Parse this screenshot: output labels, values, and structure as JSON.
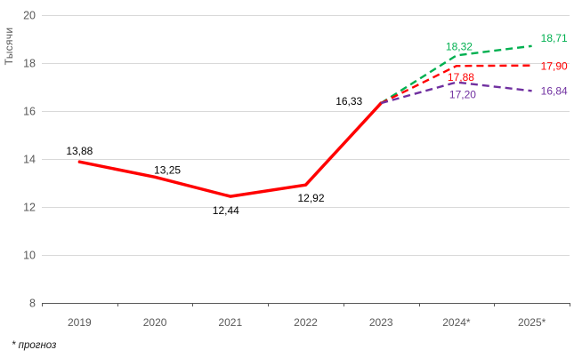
{
  "chart_data": {
    "type": "line",
    "title": "",
    "ylabel": "Тысячи",
    "xlabel": "",
    "footnote": "* прогноз",
    "categories": [
      "2019",
      "2020",
      "2021",
      "2022",
      "2023",
      "2024*",
      "2025*"
    ],
    "ylim": [
      8,
      20
    ],
    "y_ticks": [
      8,
      10,
      12,
      14,
      16,
      18,
      20
    ],
    "grid": true,
    "legend": "none",
    "axis_color": "#595959",
    "grid_color": "#d9d9d9",
    "series": [
      {
        "name": "fact",
        "color": "#ff0000",
        "style": "solid",
        "label_color": "#000000",
        "values": [
          13.88,
          13.25,
          12.44,
          12.92,
          16.33,
          null,
          null
        ],
        "labels": [
          "13,88",
          "13,25",
          "12,44",
          "12,92",
          "16,33",
          null,
          null
        ]
      },
      {
        "name": "forecast-high",
        "color": "#00b050",
        "style": "dashed",
        "label_color": "#00b050",
        "values": [
          null,
          null,
          null,
          null,
          16.33,
          18.32,
          18.71
        ],
        "labels": [
          null,
          null,
          null,
          null,
          null,
          "18,32",
          "18,71"
        ]
      },
      {
        "name": "forecast-mid",
        "color": "#ff0000",
        "style": "dashed",
        "label_color": "#ff0000",
        "values": [
          null,
          null,
          null,
          null,
          16.33,
          17.88,
          17.9
        ],
        "labels": [
          null,
          null,
          null,
          null,
          null,
          "17,88",
          "17,90"
        ]
      },
      {
        "name": "forecast-low",
        "color": "#7030a0",
        "style": "dashed",
        "label_color": "#7030a0",
        "values": [
          null,
          null,
          null,
          null,
          16.33,
          17.2,
          16.84
        ],
        "labels": [
          null,
          null,
          null,
          null,
          null,
          "17,20",
          "16,84"
        ]
      }
    ]
  }
}
